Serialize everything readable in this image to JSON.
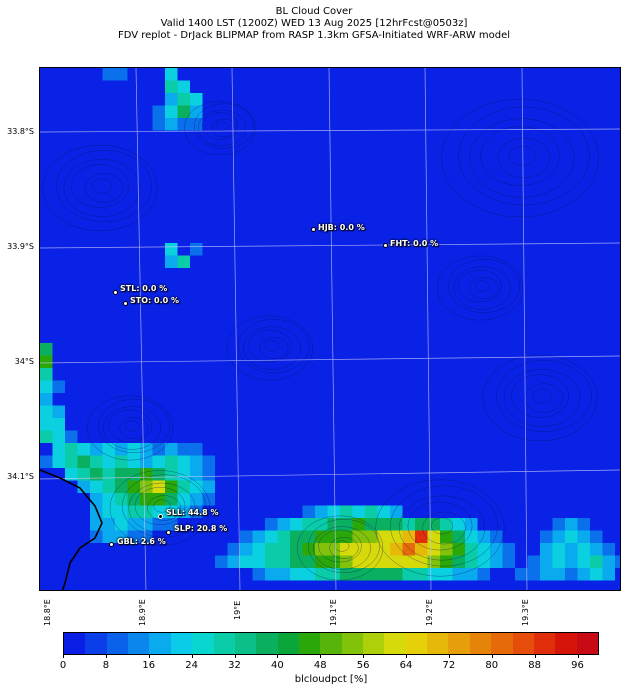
{
  "header": {
    "title": "BL Cloud Cover",
    "line2": "Valid 1400 LST (1200Z) WED 13 Aug 2025 [12hrFcst@0503z]",
    "line3": "FDV replot - DrJack BLIPMAP from RASP 1.3km GFSA-Initiated WRF-ARW model"
  },
  "axes": {
    "lat_ticks": [
      "33.8°S",
      "33.9°S",
      "34°S",
      "34.1°S"
    ],
    "lon_ticks": [
      "18.8°E",
      "18.9°E",
      "19°E",
      "19.1°E",
      "19.2°E",
      "19.3°E"
    ]
  },
  "stations": [
    {
      "label": "HJB: 0.0 %",
      "code": "HJB",
      "value": 0.0
    },
    {
      "label": "FHT: 0.0 %",
      "code": "FHT",
      "value": 0.0
    },
    {
      "label": "STL: 0.0 %",
      "code": "STL",
      "value": 0.0
    },
    {
      "label": "STO: 0.0 %",
      "code": "STO",
      "value": 0.0
    },
    {
      "label": "SLL: 44.8 %",
      "code": "SLL",
      "value": 44.8
    },
    {
      "label": "SLP: 20.8 %",
      "code": "SLP",
      "value": 20.8
    },
    {
      "label": "GBL: 2.6 %",
      "code": "GBL",
      "value": 2.6
    }
  ],
  "colorbar": {
    "label": "blcloudpct [%]",
    "ticks": [
      "0",
      "8",
      "16",
      "24",
      "32",
      "40",
      "48",
      "56",
      "64",
      "72",
      "80",
      "88",
      "96"
    ],
    "min": 0,
    "max": 100,
    "colors": [
      "#0a1ee6",
      "#0a3ee8",
      "#0a62ea",
      "#0a86ec",
      "#0aaaee",
      "#0acce8",
      "#0ad6d0",
      "#0acca8",
      "#0ac088",
      "#0ab060",
      "#0aa63a",
      "#2aa80a",
      "#56b40a",
      "#82c20a",
      "#aed00a",
      "#d6da0a",
      "#e6d00a",
      "#e6b80a",
      "#e69e0a",
      "#e6840a",
      "#e66a0a",
      "#e64c0a",
      "#e02e0a",
      "#d6140a",
      "#c80a14"
    ]
  }
}
